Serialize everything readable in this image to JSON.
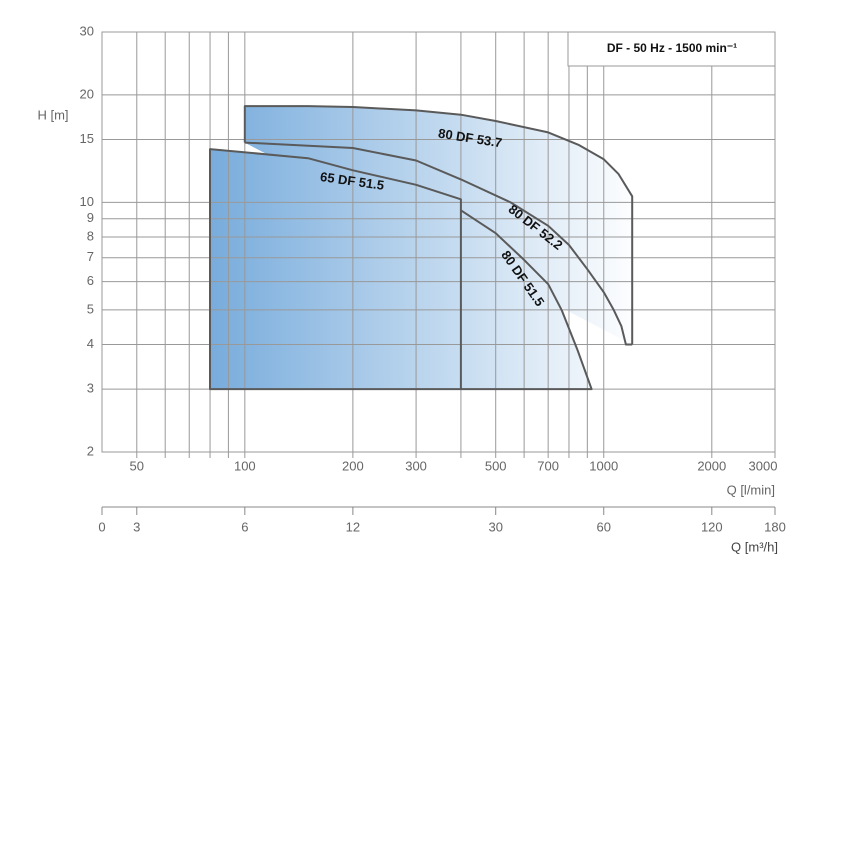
{
  "chart_data": {
    "type": "line",
    "title": "DF - 50 Hz - 1500 min⁻¹",
    "y_label": "H [m]",
    "x_label": "Q [l/min]",
    "x2_label": "Q [m³/h]",
    "log_x": true,
    "log_y": true,
    "grid": true,
    "xlim": [
      40,
      3000
    ],
    "xticks": [
      50,
      100,
      200,
      300,
      500,
      700,
      1000,
      2000,
      3000
    ],
    "xminor": [
      60,
      70,
      80,
      90,
      400,
      600,
      800,
      900
    ],
    "ylim": [
      2,
      30
    ],
    "yticks": [
      2,
      3,
      4,
      5,
      6,
      7,
      8,
      9,
      10,
      15,
      20,
      30
    ],
    "x2lim": [
      2.4,
      180
    ],
    "x2ticks": [
      0,
      3,
      6,
      12,
      30,
      60,
      120,
      180
    ],
    "fill_gradient": [
      "#78acdc",
      "#ffffff"
    ],
    "series": [
      {
        "name": "80 DF 53.7",
        "color": "#5a5a5a",
        "x": [
          100,
          100,
          150,
          200,
          300,
          400,
          500,
          700,
          850,
          1000,
          1100,
          1200,
          1200
        ],
        "values": [
          14.7,
          18.6,
          18.6,
          18.5,
          18.1,
          17.6,
          16.9,
          15.7,
          14.5,
          13.2,
          12,
          10.4,
          4
        ]
      },
      {
        "name": "80 DF 52.2",
        "color": "#5a5a5a",
        "x": [
          100,
          200,
          300,
          400,
          550,
          700,
          800,
          900,
          1000,
          1066,
          1120,
          1153,
          1200
        ],
        "values": [
          14.7,
          14.2,
          13.1,
          11.6,
          10,
          8.6,
          7.6,
          6.5,
          5.6,
          5,
          4.5,
          4,
          4
        ]
      },
      {
        "name": "65 DF 51.5",
        "color": "#5a5a5a",
        "x": [
          400,
          80,
          80,
          150,
          200,
          300,
          400,
          400
        ],
        "values": [
          3,
          3,
          14.1,
          13.3,
          12.3,
          11.2,
          10.2,
          3
        ]
      },
      {
        "name": "80 DF 51.5",
        "color": "#5a5a5a",
        "x": [
          400,
          500,
          600,
          700,
          763,
          845,
          925,
          400
        ],
        "values": [
          9.5,
          8.2,
          6.9,
          5.9,
          5,
          3.86,
          3,
          3
        ]
      }
    ]
  }
}
